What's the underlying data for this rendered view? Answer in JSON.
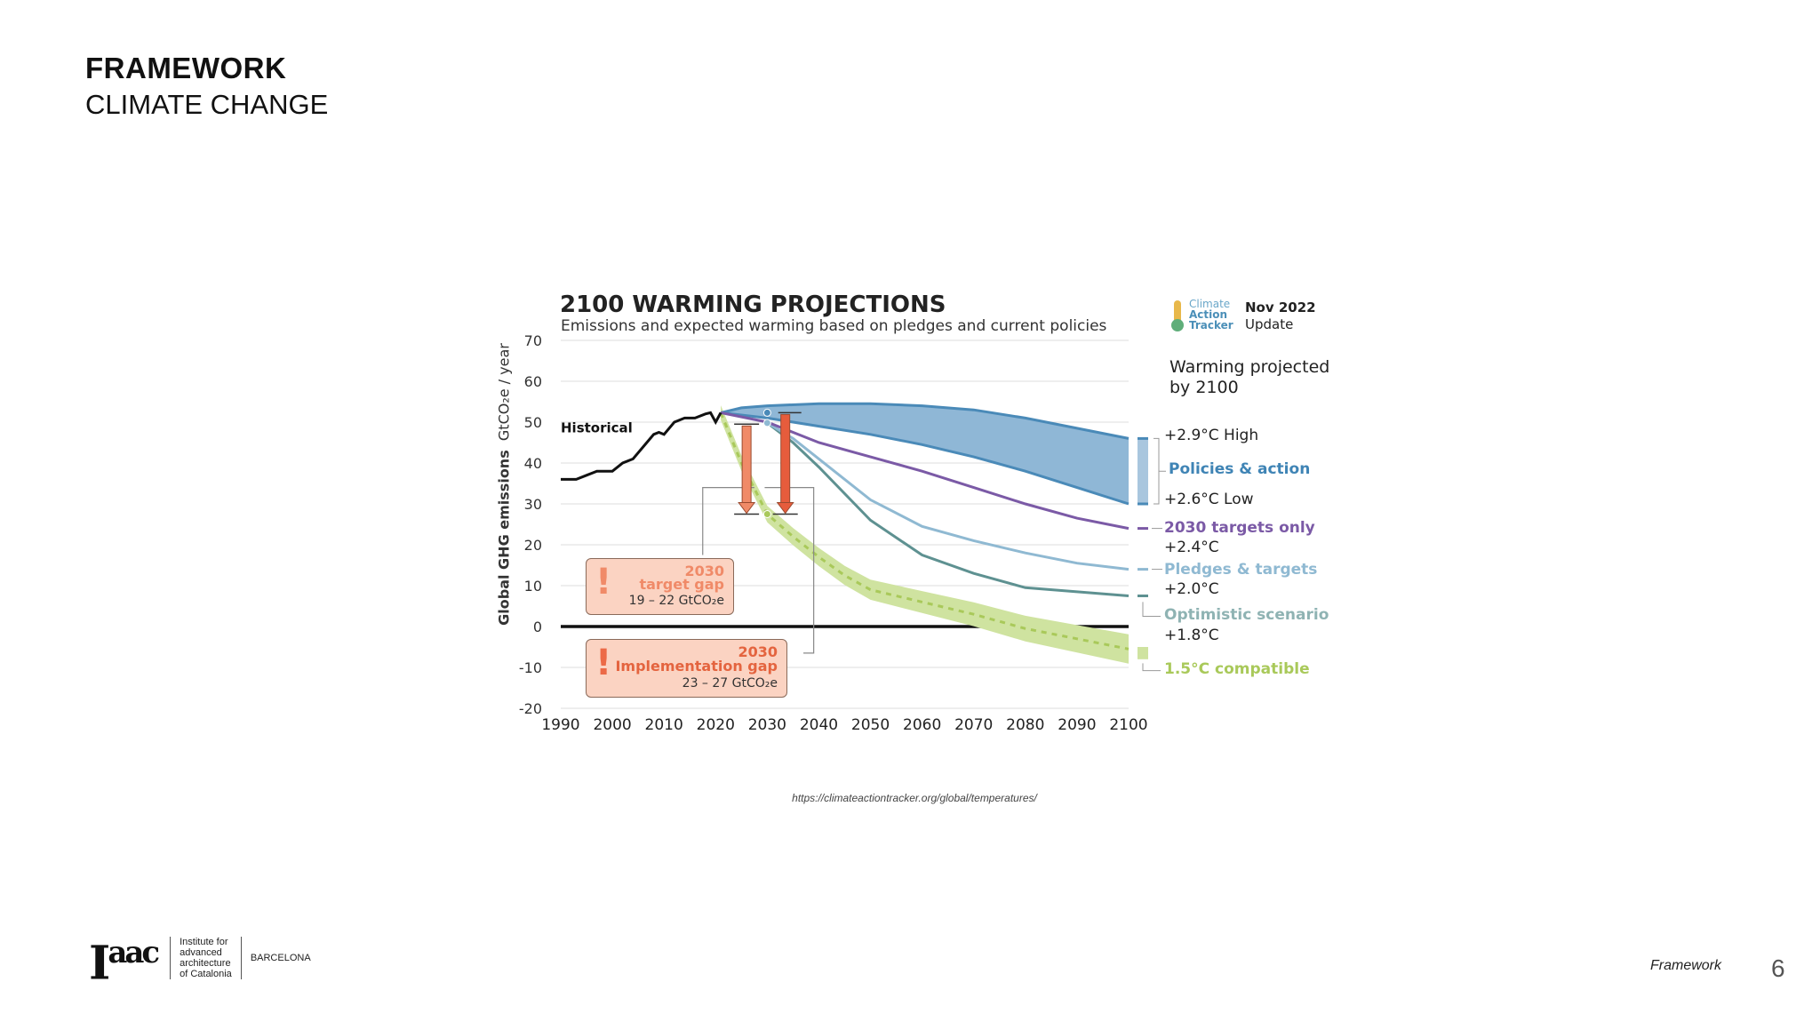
{
  "header": {
    "title": "FRAMEWORK",
    "subtitle": "CLIMATE CHANGE"
  },
  "chart_data": {
    "type": "line",
    "title": "2100 WARMING PROJECTIONS",
    "subtitle": "Emissions and expected warming based on pledges and current policies",
    "ylabel_bold": "Global GHG emissions",
    "ylabel_unit": "GtCO₂e / year",
    "xlim": [
      1990,
      2100
    ],
    "ylim": [
      -20,
      70
    ],
    "x_ticks": [
      1990,
      2000,
      2010,
      2020,
      2030,
      2040,
      2050,
      2060,
      2070,
      2080,
      2090,
      2100
    ],
    "y_ticks": [
      70,
      60,
      50,
      40,
      30,
      20,
      10,
      0,
      -10,
      -20
    ],
    "grid": true,
    "legend_placement": "right",
    "historical_label": "Historical",
    "series": [
      {
        "name": "Historical",
        "color": "#111111",
        "points": [
          [
            1990,
            36
          ],
          [
            1993,
            36
          ],
          [
            1995,
            37
          ],
          [
            1997,
            38
          ],
          [
            2000,
            38
          ],
          [
            2002,
            40
          ],
          [
            2004,
            41
          ],
          [
            2006,
            44
          ],
          [
            2008,
            47
          ],
          [
            2009,
            47.5
          ],
          [
            2010,
            47
          ],
          [
            2012,
            50
          ],
          [
            2014,
            51
          ],
          [
            2016,
            51
          ],
          [
            2018,
            52
          ],
          [
            2019,
            52.3
          ],
          [
            2020,
            50
          ],
          [
            2021,
            52.3
          ]
        ]
      },
      {
        "name": "Policies & action",
        "color": "#4a8ab8",
        "fill": "#8fb7d6",
        "upper": [
          [
            2021,
            52.3
          ],
          [
            2025,
            53.5
          ],
          [
            2030,
            54
          ],
          [
            2040,
            54.5
          ],
          [
            2050,
            54.5
          ],
          [
            2060,
            54
          ],
          [
            2070,
            53
          ],
          [
            2080,
            51
          ],
          [
            2090,
            48.5
          ],
          [
            2100,
            46
          ]
        ],
        "lower": [
          [
            2021,
            52.3
          ],
          [
            2030,
            51
          ],
          [
            2040,
            49
          ],
          [
            2050,
            47
          ],
          [
            2060,
            44.5
          ],
          [
            2070,
            41.5
          ],
          [
            2080,
            38
          ],
          [
            2090,
            34
          ],
          [
            2100,
            30
          ]
        ]
      },
      {
        "name": "2030 targets only",
        "color": "#7b5aa6",
        "points": [
          [
            2021,
            52.3
          ],
          [
            2030,
            50
          ],
          [
            2040,
            45
          ],
          [
            2050,
            41.5
          ],
          [
            2060,
            38
          ],
          [
            2070,
            34
          ],
          [
            2080,
            30
          ],
          [
            2090,
            26.5
          ],
          [
            2100,
            24
          ]
        ]
      },
      {
        "name": "Pledges & targets",
        "color": "#8fb9d2",
        "points": [
          [
            2030,
            49.8
          ],
          [
            2035,
            46
          ],
          [
            2040,
            41
          ],
          [
            2050,
            31
          ],
          [
            2060,
            24.5
          ],
          [
            2070,
            21
          ],
          [
            2080,
            18
          ],
          [
            2090,
            15.5
          ],
          [
            2100,
            14
          ]
        ]
      },
      {
        "name": "Optimistic scenario",
        "color": "#5e9191",
        "points": [
          [
            2030,
            49.8
          ],
          [
            2035,
            45
          ],
          [
            2040,
            39
          ],
          [
            2050,
            26
          ],
          [
            2060,
            17.5
          ],
          [
            2070,
            13
          ],
          [
            2080,
            9.5
          ],
          [
            2090,
            8.5
          ],
          [
            2100,
            7.5
          ]
        ]
      },
      {
        "name": "1.5°C compatible",
        "color": "#a9c95a",
        "fill": "#cfe3a0",
        "points": [
          [
            2021,
            52.3
          ],
          [
            2025,
            40
          ],
          [
            2030,
            27.5
          ],
          [
            2035,
            22
          ],
          [
            2040,
            17
          ],
          [
            2045,
            12.5
          ],
          [
            2050,
            9
          ],
          [
            2060,
            6
          ],
          [
            2070,
            3
          ],
          [
            2080,
            -0.5
          ],
          [
            2090,
            -3
          ],
          [
            2100,
            -5.5
          ]
        ],
        "band": 1.8
      }
    ],
    "gaps": [
      {
        "label_year": "2030",
        "label": "target gap",
        "value": "19 – 22  GtCO₂e",
        "year": 2026,
        "from": 49.5,
        "to": 27.5,
        "color": "#f08a68"
      },
      {
        "label_year": "2030",
        "label": "Implementation gap",
        "value": "23 – 27  GtCO₂e",
        "year": 2033.5,
        "from": 52.3,
        "to": 27.5,
        "color": "#e65c3c"
      }
    ],
    "legend": {
      "heading": [
        "Warming projected",
        "by 2100"
      ],
      "high": "+2.9°C High",
      "policies": "Policies & action",
      "low": "+2.6°C Low",
      "targets": "2030 targets only",
      "targets_temp": "+2.4°C",
      "pledges": "Pledges & targets",
      "pledges_temp": "+2.0°C",
      "optimistic": "Optimistic scenario",
      "optimistic_temp": "+1.8°C",
      "compatible": "1.5°C compatible"
    },
    "source_logo": [
      "Climate",
      "Action",
      "Tracker"
    ],
    "update": [
      "Nov 2022",
      "Update"
    ]
  },
  "source_url": "https://climateactiontracker.org/global/temperatures/",
  "footer": {
    "logo_text": "Iaac",
    "institute": [
      "Institute for",
      "advanced",
      "architecture",
      "of Catalonia"
    ],
    "city": "BARCELONA",
    "section": "Framework",
    "page": "6"
  }
}
